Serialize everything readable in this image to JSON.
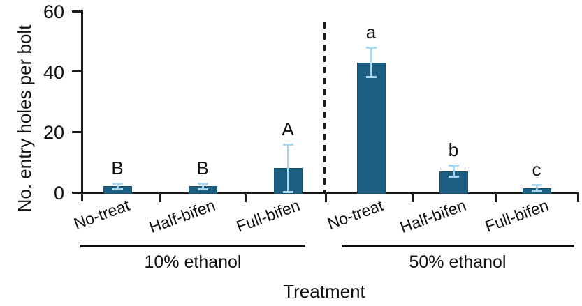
{
  "chart_data": {
    "type": "bar",
    "title": "",
    "ylabel": "No. entry holes per bolt",
    "xlabel": "Treatment",
    "ylim": [
      0,
      60
    ],
    "yticks": [
      0,
      20,
      40,
      60
    ],
    "grid": false,
    "legend": false,
    "categories": [
      "No-treat",
      "Half-bifen",
      "Full-bifen",
      "No-treat",
      "Half-bifen",
      "Full-bifen"
    ],
    "series": [
      {
        "name": "No. entry holes per bolt",
        "values": [
          2,
          2,
          8,
          43,
          7,
          1.5
        ],
        "errors": [
          1,
          1,
          8,
          5,
          2,
          1
        ],
        "sig_letters": [
          "B",
          "B",
          "A",
          "a",
          "b",
          "c"
        ]
      }
    ],
    "groups": [
      {
        "label": "10% ethanol",
        "categories": [
          0,
          1,
          2
        ]
      },
      {
        "label": "50% ethanol",
        "categories": [
          3,
          4,
          5
        ]
      }
    ],
    "separator": {
      "style": "dashed",
      "position": "between groups"
    },
    "colors": {
      "bar_fill": "#1d5f82",
      "bar_border": "#175170",
      "error_bar": "#a9d7ef",
      "axis": "#1a1a1a",
      "text": "#111111",
      "background": "#ffffff"
    }
  }
}
